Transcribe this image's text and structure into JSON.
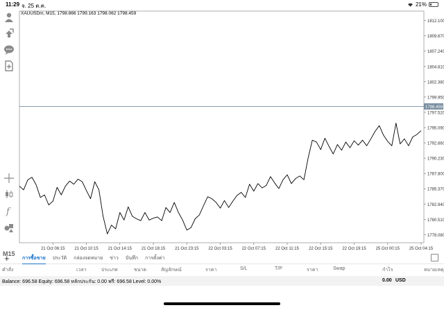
{
  "status_bar": {
    "time": "11:29",
    "date": "จ. 25 ต.ค.",
    "battery_pct": "21%",
    "battery_level": 0.21
  },
  "toolbar": {
    "icons": [
      "person-icon",
      "orders-icon",
      "chat-icon",
      "document-add-icon",
      "crosshair-icon",
      "candlestick-icon",
      "function-icon",
      "objects-icon"
    ],
    "timeframe": "M15"
  },
  "chart": {
    "title": "XAUUSDm, M15, 1798.866 1799.163 1798.062 1798.459",
    "current_price": "1798.459",
    "y_labels": [
      "1812.100",
      "1809.670",
      "1807.240",
      "1804.810",
      "1802.380",
      "1799.950",
      "1797.520",
      "1795.090",
      "1792.660",
      "1790.230",
      "1787.800",
      "1785.370",
      "1782.940",
      "1780.510",
      "1778.080"
    ],
    "x_labels": [
      "21 Oct 06:15",
      "21 Oct 10:15",
      "21 Oct 14:15",
      "21 Oct 18:15",
      "21 Oct 23:15",
      "22 Oct 03:15",
      "22 Oct 07:15",
      "22 Oct 11:15",
      "22 Oct 15:15",
      "22 Oct 19:15",
      "25 Oct 00:15",
      "25 Oct 04:15"
    ]
  },
  "chart_data": {
    "type": "line",
    "ylim": [
      1776.8,
      1813.6
    ],
    "y_ticks": [
      1812.1,
      1809.67,
      1807.24,
      1804.81,
      1802.38,
      1799.95,
      1797.52,
      1795.09,
      1792.66,
      1790.23,
      1787.8,
      1785.37,
      1782.94,
      1780.51,
      1778.08
    ],
    "x_count": 288,
    "current_price": 1798.459,
    "points": [
      [
        0,
        1785.8
      ],
      [
        3,
        1785.2
      ],
      [
        6,
        1786.8
      ],
      [
        9,
        1787.2
      ],
      [
        12,
        1786.0
      ],
      [
        15,
        1784.0
      ],
      [
        18,
        1784.4
      ],
      [
        21,
        1782.8
      ],
      [
        24,
        1783.4
      ],
      [
        27,
        1785.6
      ],
      [
        30,
        1784.4
      ],
      [
        33,
        1785.8
      ],
      [
        36,
        1786.6
      ],
      [
        39,
        1786.1
      ],
      [
        42,
        1786.9
      ],
      [
        45,
        1786.5
      ],
      [
        48,
        1785.1
      ],
      [
        51,
        1783.8
      ],
      [
        54,
        1786.5
      ],
      [
        57,
        1785.2
      ],
      [
        60,
        1781.0
      ],
      [
        63,
        1778.2
      ],
      [
        66,
        1779.6
      ],
      [
        69,
        1779.0
      ],
      [
        72,
        1781.6
      ],
      [
        75,
        1780.4
      ],
      [
        78,
        1782.5
      ],
      [
        81,
        1781.0
      ],
      [
        84,
        1780.6
      ],
      [
        87,
        1780.3
      ],
      [
        90,
        1781.6
      ],
      [
        93,
        1780.4
      ],
      [
        96,
        1780.7
      ],
      [
        99,
        1780.9
      ],
      [
        102,
        1780.3
      ],
      [
        105,
        1782.4
      ],
      [
        108,
        1781.6
      ],
      [
        111,
        1783.2
      ],
      [
        114,
        1781.6
      ],
      [
        117,
        1780.4
      ],
      [
        120,
        1778.8
      ],
      [
        123,
        1779.2
      ],
      [
        126,
        1780.6
      ],
      [
        129,
        1781.2
      ],
      [
        132,
        1782.7
      ],
      [
        135,
        1784.1
      ],
      [
        138,
        1783.8
      ],
      [
        141,
        1783.2
      ],
      [
        144,
        1782.3
      ],
      [
        147,
        1783.5
      ],
      [
        150,
        1782.4
      ],
      [
        153,
        1783.4
      ],
      [
        156,
        1784.3
      ],
      [
        159,
        1784.8
      ],
      [
        162,
        1784.0
      ],
      [
        165,
        1786.1
      ],
      [
        168,
        1785.0
      ],
      [
        171,
        1786.2
      ],
      [
        174,
        1785.5
      ],
      [
        177,
        1785.9
      ],
      [
        180,
        1787.3
      ],
      [
        183,
        1786.3
      ],
      [
        186,
        1785.4
      ],
      [
        189,
        1786.8
      ],
      [
        192,
        1787.6
      ],
      [
        195,
        1786.2
      ],
      [
        198,
        1787.0
      ],
      [
        201,
        1787.4
      ],
      [
        204,
        1786.8
      ],
      [
        207,
        1790.3
      ],
      [
        210,
        1793.1
      ],
      [
        213,
        1792.8
      ],
      [
        216,
        1791.6
      ],
      [
        219,
        1793.4
      ],
      [
        222,
        1792.1
      ],
      [
        225,
        1790.9
      ],
      [
        228,
        1792.4
      ],
      [
        231,
        1791.5
      ],
      [
        234,
        1792.8
      ],
      [
        237,
        1791.9
      ],
      [
        240,
        1793.0
      ],
      [
        243,
        1792.3
      ],
      [
        246,
        1793.1
      ],
      [
        249,
        1792.2
      ],
      [
        252,
        1793.3
      ],
      [
        255,
        1794.5
      ],
      [
        258,
        1795.4
      ],
      [
        261,
        1793.9
      ],
      [
        264,
        1792.9
      ],
      [
        267,
        1792.2
      ],
      [
        270,
        1795.8
      ],
      [
        273,
        1792.5
      ],
      [
        276,
        1793.3
      ],
      [
        279,
        1792.2
      ],
      [
        282,
        1793.6
      ],
      [
        285,
        1794.0
      ],
      [
        288,
        1794.6
      ]
    ]
  },
  "tabs": [
    "การซื้อขาย",
    "ประวัติ",
    "กล่องจดหมาย",
    "ข่าว",
    "บันทึก",
    "การตั้งค่า"
  ],
  "columns": [
    "คำสั่ง",
    "เวลา",
    "ประเภท",
    "ขนาด",
    "สัญลักษณ์",
    "ราคา",
    "S/L",
    "T/P",
    "ราคา",
    "Swap",
    "กำไร",
    "หมายเหตุ"
  ],
  "balance": {
    "text": "Balance: 696.58 Equity: 696.58 หลักประกัน: 0.00 ฟรี: 696.58 Level: 0.00%",
    "profit": "0.00",
    "currency": "USD"
  }
}
